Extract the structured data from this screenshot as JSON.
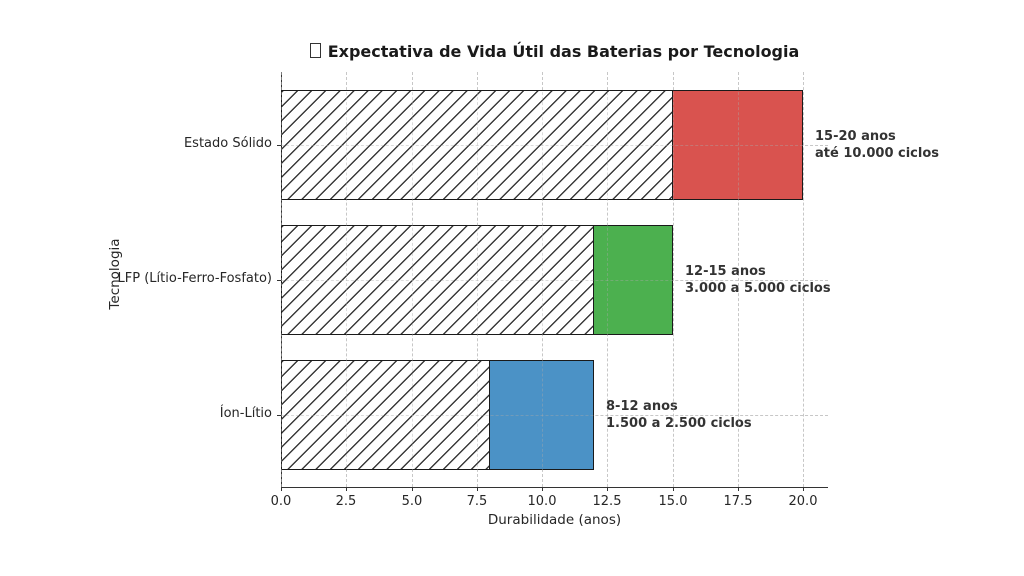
{
  "figure": {
    "title": "Expectativa de Vida Útil das Baterias por Tecnologia",
    "title_prefix_missing_glyph": "□"
  },
  "chart_data": {
    "type": "bar",
    "orientation": "horizontal",
    "title": "Expectativa de Vida Útil das Baterias por Tecnologia",
    "xlabel": "Durabilidade (anos)",
    "ylabel": "Tecnologia",
    "xlim": [
      0,
      20.95
    ],
    "xtick_labels": [
      "0.0",
      "2.5",
      "5.0",
      "7.5",
      "10.0",
      "12.5",
      "15.0",
      "17.5",
      "20.0"
    ],
    "grid": {
      "style": "dashed",
      "color": "#aaaaaa",
      "drawn_above_bars": true
    },
    "hatch": {
      "pattern": "diagonal-forward-slash",
      "facecolor": "#ffffff",
      "linecolor": "#3a3a3a"
    },
    "bar_edge_color": "#1a1a1a",
    "categories": [
      "Estado Sólido",
      "LFP (Lítio-Ferro-Fosfato)",
      "Íon-Lítio"
    ],
    "bars": [
      {
        "category": "Estado Sólido",
        "min_years": 15,
        "max_years": 20,
        "color": "#d9534f",
        "annotation_line1": "15-20 anos",
        "annotation_line2": "até 10.000 ciclos"
      },
      {
        "category": "LFP (Lítio-Ferro-Fosfato)",
        "min_years": 12,
        "max_years": 15,
        "color": "#4cb04f",
        "annotation_line1": "12-15 anos",
        "annotation_line2": "3.000 a 5.000 ciclos"
      },
      {
        "category": "Íon-Lítio",
        "min_years": 8,
        "max_years": 12,
        "color": "#4b92c6",
        "annotation_line1": "8-12 anos",
        "annotation_line2": "1.500 a 2.500 ciclos"
      }
    ]
  }
}
